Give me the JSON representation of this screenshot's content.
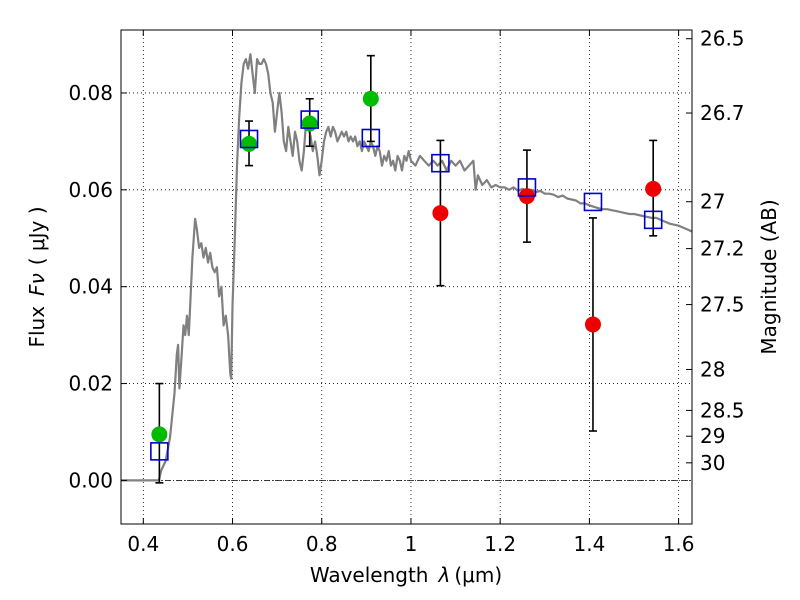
{
  "chart_data": {
    "type": "scatter",
    "xlabel_text": "Wavelength",
    "xlabel_symbol": "λ",
    "xlabel_unit": "(μm)",
    "ylabel_text": "Flux",
    "ylabel_symbol": "Fν",
    "ylabel_unit": "( μJy )",
    "ylabel_right": "Magnitude (AB)",
    "xlim": [
      0.35,
      1.63
    ],
    "ylim": [
      -0.009,
      0.093
    ],
    "grid": true,
    "x_ticks": [
      {
        "value": 0.4,
        "label": "0.4"
      },
      {
        "value": 0.6,
        "label": "0.6"
      },
      {
        "value": 0.8,
        "label": "0.8"
      },
      {
        "value": 1.0,
        "label": "1"
      },
      {
        "value": 1.2,
        "label": "1.2"
      },
      {
        "value": 1.4,
        "label": "1.4"
      },
      {
        "value": 1.6,
        "label": "1.6"
      }
    ],
    "y_ticks": [
      {
        "value": 0.0,
        "label": "0.00"
      },
      {
        "value": 0.02,
        "label": "0.02"
      },
      {
        "value": 0.04,
        "label": "0.04"
      },
      {
        "value": 0.06,
        "label": "0.06"
      },
      {
        "value": 0.08,
        "label": "0.08"
      }
    ],
    "right_ticks": [
      {
        "value": 26.5,
        "label": "26.5"
      },
      {
        "value": 26.7,
        "label": "26.7"
      },
      {
        "value": 27.0,
        "label": "27"
      },
      {
        "value": 27.2,
        "label": "27.2"
      },
      {
        "value": 27.5,
        "label": "27.5"
      },
      {
        "value": 28.0,
        "label": "28"
      },
      {
        "value": 28.5,
        "label": "28.5"
      },
      {
        "value": 29.0,
        "label": "29"
      },
      {
        "value": 30.0,
        "label": "30"
      }
    ],
    "model_spectrum": {
      "color": "#808080",
      "points": [
        [
          0.35,
          0.0
        ],
        [
          0.435,
          0.0
        ],
        [
          0.44,
          0.002
        ],
        [
          0.45,
          0.004
        ],
        [
          0.46,
          0.009
        ],
        [
          0.47,
          0.018
        ],
        [
          0.475,
          0.026
        ],
        [
          0.478,
          0.028
        ],
        [
          0.481,
          0.019
        ],
        [
          0.486,
          0.026
        ],
        [
          0.49,
          0.032
        ],
        [
          0.494,
          0.03
        ],
        [
          0.498,
          0.034
        ],
        [
          0.502,
          0.03
        ],
        [
          0.506,
          0.038
        ],
        [
          0.51,
          0.046
        ],
        [
          0.516,
          0.054
        ],
        [
          0.52,
          0.052
        ],
        [
          0.525,
          0.048
        ],
        [
          0.53,
          0.049
        ],
        [
          0.535,
          0.046
        ],
        [
          0.54,
          0.048
        ],
        [
          0.545,
          0.045
        ],
        [
          0.55,
          0.047
        ],
        [
          0.555,
          0.044
        ],
        [
          0.56,
          0.043
        ],
        [
          0.565,
          0.044
        ],
        [
          0.57,
          0.038
        ],
        [
          0.575,
          0.04
        ],
        [
          0.58,
          0.032
        ],
        [
          0.585,
          0.034
        ],
        [
          0.59,
          0.03
        ],
        [
          0.595,
          0.022
        ],
        [
          0.597,
          0.021
        ],
        [
          0.6,
          0.036
        ],
        [
          0.605,
          0.05
        ],
        [
          0.61,
          0.065
        ],
        [
          0.615,
          0.075
        ],
        [
          0.62,
          0.082
        ],
        [
          0.625,
          0.086
        ],
        [
          0.63,
          0.087
        ],
        [
          0.635,
          0.085
        ],
        [
          0.64,
          0.088
        ],
        [
          0.645,
          0.084
        ],
        [
          0.65,
          0.08
        ],
        [
          0.655,
          0.087
        ],
        [
          0.66,
          0.086
        ],
        [
          0.665,
          0.086
        ],
        [
          0.67,
          0.087
        ],
        [
          0.675,
          0.086
        ],
        [
          0.68,
          0.084
        ],
        [
          0.685,
          0.08
        ],
        [
          0.69,
          0.078
        ],
        [
          0.695,
          0.072
        ],
        [
          0.7,
          0.076
        ],
        [
          0.705,
          0.08
        ],
        [
          0.71,
          0.076
        ],
        [
          0.715,
          0.07
        ],
        [
          0.72,
          0.068
        ],
        [
          0.725,
          0.073
        ],
        [
          0.73,
          0.07
        ],
        [
          0.735,
          0.067
        ],
        [
          0.74,
          0.072
        ],
        [
          0.745,
          0.07
        ],
        [
          0.75,
          0.066
        ],
        [
          0.755,
          0.064
        ],
        [
          0.76,
          0.068
        ],
        [
          0.765,
          0.074
        ],
        [
          0.77,
          0.073
        ],
        [
          0.775,
          0.071
        ],
        [
          0.78,
          0.068
        ],
        [
          0.785,
          0.07
        ],
        [
          0.79,
          0.067
        ],
        [
          0.795,
          0.063
        ],
        [
          0.8,
          0.066
        ],
        [
          0.805,
          0.07
        ],
        [
          0.81,
          0.072
        ],
        [
          0.815,
          0.073
        ],
        [
          0.82,
          0.071
        ],
        [
          0.825,
          0.073
        ],
        [
          0.83,
          0.072
        ],
        [
          0.835,
          0.07
        ],
        [
          0.84,
          0.071
        ],
        [
          0.845,
          0.072
        ],
        [
          0.85,
          0.071
        ],
        [
          0.855,
          0.072
        ],
        [
          0.86,
          0.07
        ],
        [
          0.865,
          0.071
        ],
        [
          0.87,
          0.07
        ],
        [
          0.875,
          0.071
        ],
        [
          0.88,
          0.069
        ],
        [
          0.885,
          0.07
        ],
        [
          0.89,
          0.068
        ],
        [
          0.895,
          0.07
        ],
        [
          0.9,
          0.069
        ],
        [
          0.905,
          0.068
        ],
        [
          0.91,
          0.07
        ],
        [
          0.915,
          0.069
        ],
        [
          0.92,
          0.067
        ],
        [
          0.925,
          0.069
        ],
        [
          0.93,
          0.068
        ],
        [
          0.935,
          0.065
        ],
        [
          0.94,
          0.067
        ],
        [
          0.945,
          0.066
        ],
        [
          0.95,
          0.068
        ],
        [
          0.955,
          0.065
        ],
        [
          0.96,
          0.066
        ],
        [
          0.965,
          0.064
        ],
        [
          0.97,
          0.067
        ],
        [
          0.975,
          0.066
        ],
        [
          0.98,
          0.064
        ],
        [
          0.985,
          0.067
        ],
        [
          0.99,
          0.066
        ],
        [
          0.995,
          0.068
        ],
        [
          1.0,
          0.066
        ],
        [
          1.01,
          0.065
        ],
        [
          1.02,
          0.067
        ],
        [
          1.03,
          0.066
        ],
        [
          1.04,
          0.065
        ],
        [
          1.05,
          0.066
        ],
        [
          1.06,
          0.065
        ],
        [
          1.07,
          0.066
        ],
        [
          1.08,
          0.064
        ],
        [
          1.09,
          0.066
        ],
        [
          1.1,
          0.065
        ],
        [
          1.11,
          0.066
        ],
        [
          1.12,
          0.064
        ],
        [
          1.13,
          0.065
        ],
        [
          1.14,
          0.066
        ],
        [
          1.145,
          0.06
        ],
        [
          1.15,
          0.063
        ],
        [
          1.16,
          0.061
        ],
        [
          1.17,
          0.062
        ],
        [
          1.18,
          0.0605
        ],
        [
          1.19,
          0.061
        ],
        [
          1.2,
          0.0605
        ],
        [
          1.21,
          0.0605
        ],
        [
          1.22,
          0.06
        ],
        [
          1.23,
          0.0605
        ],
        [
          1.24,
          0.0598
        ],
        [
          1.25,
          0.0602
        ],
        [
          1.26,
          0.0598
        ],
        [
          1.27,
          0.06
        ],
        [
          1.28,
          0.0595
        ],
        [
          1.29,
          0.0598
        ],
        [
          1.3,
          0.0592
        ],
        [
          1.31,
          0.0592
        ],
        [
          1.32,
          0.059
        ],
        [
          1.33,
          0.0585
        ],
        [
          1.34,
          0.0588
        ],
        [
          1.35,
          0.0582
        ],
        [
          1.36,
          0.058
        ],
        [
          1.37,
          0.0578
        ],
        [
          1.38,
          0.0572
        ],
        [
          1.39,
          0.0572
        ],
        [
          1.4,
          0.0568
        ],
        [
          1.41,
          0.0565
        ],
        [
          1.42,
          0.0562
        ],
        [
          1.43,
          0.056
        ],
        [
          1.44,
          0.056
        ],
        [
          1.45,
          0.0558
        ],
        [
          1.46,
          0.0556
        ],
        [
          1.47,
          0.0554
        ],
        [
          1.48,
          0.0552
        ],
        [
          1.49,
          0.055
        ],
        [
          1.5,
          0.055
        ],
        [
          1.51,
          0.0548
        ],
        [
          1.52,
          0.0546
        ],
        [
          1.53,
          0.0544
        ],
        [
          1.54,
          0.0542
        ],
        [
          1.55,
          0.0542
        ],
        [
          1.56,
          0.0538
        ],
        [
          1.57,
          0.0534
        ],
        [
          1.58,
          0.053
        ],
        [
          1.59,
          0.0528
        ],
        [
          1.6,
          0.0526
        ],
        [
          1.61,
          0.0522
        ],
        [
          1.62,
          0.0518
        ],
        [
          1.63,
          0.0514
        ]
      ]
    },
    "observations": [
      {
        "x": 0.436,
        "y": 0.0095,
        "y_low": -0.0005,
        "y_high": 0.02,
        "color": "#00bb00",
        "model": 0.006
      },
      {
        "x": 0.637,
        "y": 0.0695,
        "y_low": 0.065,
        "y_high": 0.0742,
        "color": "#00bb00",
        "model": 0.0705
      },
      {
        "x": 0.773,
        "y": 0.0737,
        "y_low": 0.069,
        "y_high": 0.0788,
        "color": "#00bb00",
        "model": 0.0745
      },
      {
        "x": 0.91,
        "y": 0.0788,
        "y_low": 0.07,
        "y_high": 0.0877,
        "color": "#00bb00",
        "model": 0.0707
      },
      {
        "x": 1.066,
        "y": 0.0552,
        "y_low": 0.0402,
        "y_high": 0.0702,
        "color": "#ee0000",
        "model": 0.0655
      },
      {
        "x": 1.26,
        "y": 0.0587,
        "y_low": 0.0492,
        "y_high": 0.0682,
        "color": "#ee0000",
        "model": 0.0605
      },
      {
        "x": 1.408,
        "y": 0.0322,
        "y_low": 0.0102,
        "y_high": 0.0542,
        "color": "#ee0000",
        "model": 0.0575
      },
      {
        "x": 1.543,
        "y": 0.0602,
        "y_low": 0.0505,
        "y_high": 0.0702,
        "color": "#ee0000",
        "model": 0.0538
      }
    ],
    "model_marker_color": "#0000cc",
    "zero_line": true
  }
}
